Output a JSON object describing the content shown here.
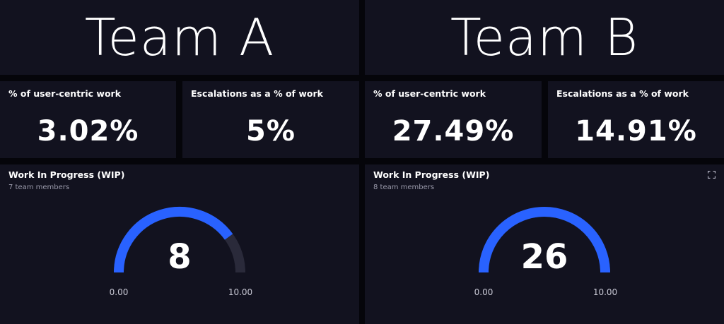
{
  "teams": [
    {
      "title": "Team A",
      "user_centric": {
        "label": "% of user-centric work",
        "value": "3.02%"
      },
      "escalations": {
        "label": "Escalations as a % of work",
        "value": "5%"
      },
      "wip": {
        "title": "Work In Progress (WIP)",
        "subtitle": "7 team members",
        "value": 8,
        "value_label": "8",
        "min": 0,
        "max": 10,
        "min_label": "0.00",
        "max_label": "10.00"
      }
    },
    {
      "title": "Team B",
      "user_centric": {
        "label": "% of user-centric work",
        "value": "27.49%"
      },
      "escalations": {
        "label": "Escalations as a % of work",
        "value": "14.91%"
      },
      "wip": {
        "title": "Work In Progress (WIP)",
        "subtitle": "8 team members",
        "value": 26,
        "value_label": "26",
        "min": 0,
        "max": 10,
        "min_label": "0.00",
        "max_label": "10.00",
        "expand_icon": "expand-icon"
      }
    }
  ],
  "colors": {
    "gauge_fill": "#2962ff",
    "gauge_track": "#2a2a3a",
    "panel_bg": "#12121f",
    "page_bg": "#05050a"
  }
}
